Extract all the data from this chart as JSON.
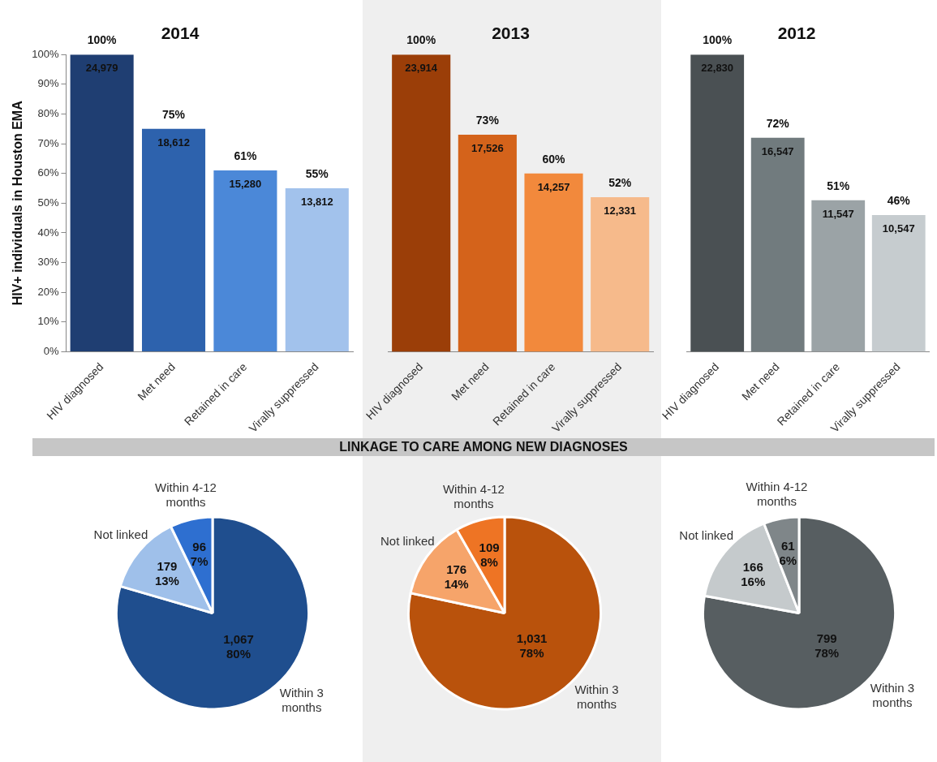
{
  "chart_data": [
    {
      "type": "bar",
      "title": "2014",
      "ylabel": "HIV+ individuals in Houston EMA",
      "categories": [
        "HIV diagnosed",
        "Met need",
        "Retained in care",
        "Virally suppressed"
      ],
      "values": [
        100,
        75,
        61,
        55
      ],
      "colors": [
        "#1f3e72",
        "#2d62ad",
        "#4b88d8",
        "#a2c2ec"
      ],
      "value_labels": [
        "100%",
        "75%",
        "61%",
        "55%"
      ],
      "annotations": [
        {
          "text": "24,979",
          "x": "HIV diagnosed",
          "y": 100
        },
        {
          "text": "18,612",
          "x": "Met need",
          "y": 75
        },
        {
          "text": "15,280",
          "x": "Retained in care",
          "y": 61
        },
        {
          "text": "13,812",
          "x": "Virally suppressed",
          "y": 55
        }
      ],
      "ylim": [
        0,
        100
      ],
      "yticks": [
        {
          "value": 0,
          "label": "0%"
        },
        {
          "value": 10,
          "label": "10%"
        },
        {
          "value": 20,
          "label": "20%"
        },
        {
          "value": 30,
          "label": "30%"
        },
        {
          "value": 40,
          "label": "40%"
        },
        {
          "value": 50,
          "label": "50%"
        },
        {
          "value": 60,
          "label": "60%"
        },
        {
          "value": 70,
          "label": "70%"
        },
        {
          "value": 80,
          "label": "80%"
        },
        {
          "value": 90,
          "label": "90%"
        },
        {
          "value": 100,
          "label": "100%"
        }
      ]
    },
    {
      "type": "bar",
      "title": "2013",
      "categories": [
        "HIV diagnosed",
        "Met need",
        "Retained in care",
        "Virally suppressed"
      ],
      "values": [
        100,
        73,
        60,
        52
      ],
      "colors": [
        "#9b3e08",
        "#d4631b",
        "#f2893c",
        "#f6ba8b"
      ],
      "value_labels": [
        "100%",
        "73%",
        "60%",
        "52%"
      ],
      "annotations": [
        {
          "text": "23,914",
          "x": "HIV diagnosed",
          "y": 100
        },
        {
          "text": "17,526",
          "x": "Met need",
          "y": 73
        },
        {
          "text": "14,257",
          "x": "Retained in care",
          "y": 60
        },
        {
          "text": "12,331",
          "x": "Virally suppressed",
          "y": 52
        }
      ],
      "ylim": [
        0,
        100
      ],
      "tick_labels": "x"
    },
    {
      "type": "bar",
      "title": "2012",
      "categories": [
        "HIV diagnosed",
        "Met need",
        "Retained in care",
        "Virally suppressed"
      ],
      "values": [
        100,
        72,
        51,
        46
      ],
      "colors": [
        "#4a5053",
        "#717b7e",
        "#9ba3a6",
        "#c6cccf"
      ],
      "value_labels": [
        "100%",
        "72%",
        "51%",
        "46%"
      ],
      "annotations": [
        {
          "text": "22,830",
          "x": "HIV diagnosed",
          "y": 100
        },
        {
          "text": "16,547",
          "x": "Met need",
          "y": 72
        },
        {
          "text": "11,547",
          "x": "Retained in care",
          "y": 51
        },
        {
          "text": "10,547",
          "x": "Virally suppressed",
          "y": 46
        }
      ],
      "ylim": [
        0,
        100
      ],
      "tick_labels": "x"
    },
    {
      "type": "pie",
      "categories": [
        "Within 3 months",
        "Not linked",
        "Within 4-12 months"
      ],
      "values": [
        1067,
        179,
        96
      ],
      "colors": [
        "#1f4e8e",
        "#9fc0ea",
        "#2e6fd0"
      ],
      "value_labels": [
        "1,067 80%",
        "179 13%",
        "96 7%"
      ]
    },
    {
      "type": "pie",
      "title": "LINKAGE TO CARE AMONG NEW DIAGNOSES",
      "categories": [
        "Within 3 months",
        "Not linked",
        "Within 4-12 months"
      ],
      "values": [
        1031,
        176,
        109
      ],
      "colors": [
        "#b9520c",
        "#f6a46a",
        "#ee7424"
      ],
      "value_labels": [
        "1,031 78%",
        "176 14%",
        "109 8%"
      ]
    },
    {
      "type": "pie",
      "categories": [
        "Within 3 months",
        "Not linked",
        "Within 4-12 months"
      ],
      "values": [
        799,
        166,
        61
      ],
      "colors": [
        "#575e61",
        "#c5cacc",
        "#7f8689"
      ],
      "value_labels": [
        "799 78%",
        "166 16%",
        "61 6%"
      ]
    }
  ]
}
